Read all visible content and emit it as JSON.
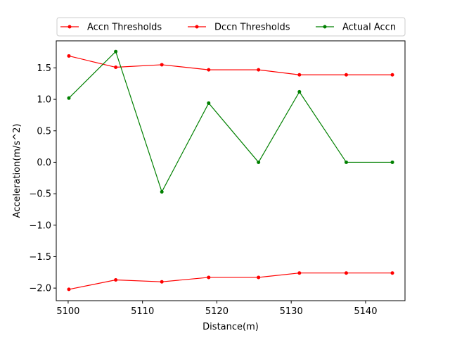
{
  "chart_data": {
    "type": "line",
    "xlabel": "Distance(m)",
    "ylabel": "Acceleration(m/s^2)",
    "xlim": [
      5098.4,
      5145.3
    ],
    "ylim": [
      -2.2,
      1.93
    ],
    "xticks": [
      5100,
      5110,
      5120,
      5130,
      5140
    ],
    "xtick_labels": [
      "5100",
      "5110",
      "5120",
      "5130",
      "5140"
    ],
    "yticks": [
      -2.0,
      -1.5,
      -1.0,
      -0.5,
      0.0,
      0.5,
      1.0,
      1.5
    ],
    "ytick_labels": [
      "−2.0",
      "−1.5",
      "−1.0",
      "−0.5",
      "0.0",
      "0.5",
      "1.0",
      "1.5"
    ],
    "grid": false,
    "legend_position": "top",
    "x": [
      5100.1,
      5106.4,
      5112.6,
      5118.9,
      5125.6,
      5131.1,
      5137.4,
      5143.6
    ],
    "series": [
      {
        "name": "Accn Thresholds",
        "color": "#ff0000",
        "values": [
          1.69,
          1.51,
          1.55,
          1.47,
          1.47,
          1.39,
          1.39,
          1.39
        ]
      },
      {
        "name": "Dccn Thresholds",
        "color": "#ff0000",
        "values": [
          -2.02,
          -1.87,
          -1.9,
          -1.83,
          -1.83,
          -1.76,
          -1.76,
          -1.76
        ]
      },
      {
        "name": "Actual Accn",
        "color": "#008000",
        "values": [
          1.02,
          1.76,
          -0.47,
          0.94,
          0.0,
          1.12,
          0.0,
          0.0
        ]
      }
    ]
  }
}
